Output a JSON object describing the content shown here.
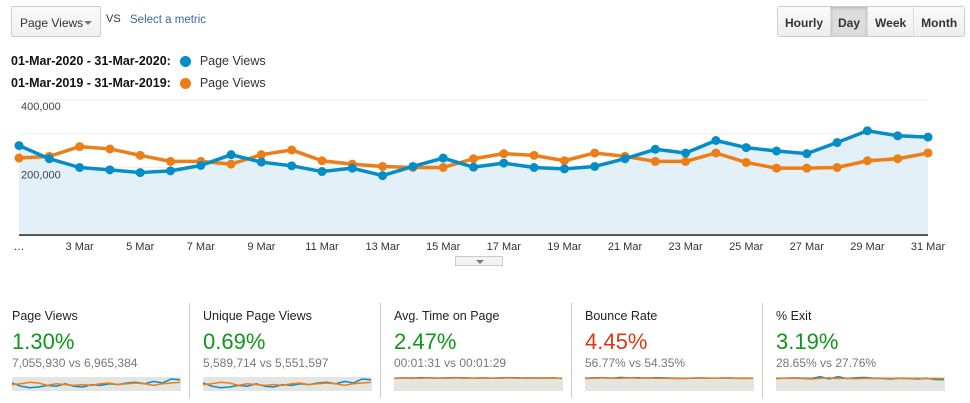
{
  "toolbar": {
    "metric": "Page Views",
    "vs": "VS",
    "select_metric": "Select a metric",
    "periods": [
      "Hourly",
      "Day",
      "Week",
      "Month"
    ],
    "active_period": "Day"
  },
  "legend": [
    {
      "range": "01-Mar-2020 - 31-Mar-2020:",
      "label": "Page Views",
      "color": "#058dc7"
    },
    {
      "range": "01-Mar-2019 - 31-Mar-2019:",
      "label": "Page Views",
      "color": "#ed7e17"
    }
  ],
  "chart_data": {
    "type": "line",
    "x": [
      "…",
      "2 Mar",
      "3 Mar",
      "4 Mar",
      "5 Mar",
      "6 Mar",
      "7 Mar",
      "8 Mar",
      "9 Mar",
      "10 Mar",
      "11 Mar",
      "12 Mar",
      "13 Mar",
      "14 Mar",
      "15 Mar",
      "16 Mar",
      "17 Mar",
      "18 Mar",
      "19 Mar",
      "20 Mar",
      "21 Mar",
      "22 Mar",
      "23 Mar",
      "24 Mar",
      "25 Mar",
      "26 Mar",
      "27 Mar",
      "28 Mar",
      "29 Mar",
      "30 Mar",
      "31 Mar"
    ],
    "tick_labels": [
      "…",
      "3 Mar",
      "5 Mar",
      "7 Mar",
      "9 Mar",
      "11 Mar",
      "13 Mar",
      "15 Mar",
      "17 Mar",
      "19 Mar",
      "21 Mar",
      "23 Mar",
      "25 Mar",
      "27 Mar",
      "29 Mar",
      "31 Mar"
    ],
    "y_ticks": [
      "400,000",
      "200,000"
    ],
    "ylim": [
      0,
      400000
    ],
    "series": [
      {
        "name": "Page Views (01-Mar-2020 - 31-Mar-2020)",
        "color": "#058dc7",
        "values": [
          265000,
          226000,
          200000,
          193000,
          185000,
          190000,
          206000,
          238000,
          216000,
          205000,
          188000,
          198000,
          176000,
          203000,
          228000,
          201000,
          213000,
          200000,
          196000,
          203000,
          226000,
          254000,
          243000,
          280000,
          259000,
          249000,
          241000,
          274000,
          309000,
          294000,
          290000
        ]
      },
      {
        "name": "Page Views (01-Mar-2019 - 31-Mar-2019)",
        "color": "#ed7e17",
        "values": [
          228000,
          233000,
          262000,
          255000,
          236000,
          218000,
          218000,
          210000,
          238000,
          252000,
          220000,
          210000,
          203000,
          200000,
          200000,
          226000,
          241000,
          236000,
          220000,
          243000,
          233000,
          218000,
          218000,
          243000,
          215000,
          198000,
          198000,
          200000,
          220000,
          226000,
          243000
        ]
      }
    ]
  },
  "scorecards": [
    {
      "title": "Page Views",
      "change": "1.30%",
      "color": "#109618",
      "compare": "7,055,930 vs 6,965,384",
      "spark": [
        [
          0.5,
          0.3,
          0.2,
          0.25,
          0.35,
          0.3,
          0.45,
          0.3,
          0.25,
          0.4,
          0.35,
          0.45,
          0.4,
          0.5,
          0.55,
          0.45,
          0.6,
          0.5,
          0.75,
          0.7
        ],
        [
          0.4,
          0.45,
          0.55,
          0.5,
          0.35,
          0.45,
          0.4,
          0.35,
          0.4,
          0.35,
          0.45,
          0.5,
          0.4,
          0.45,
          0.5,
          0.45,
          0.35,
          0.45,
          0.5,
          0.55
        ]
      ]
    },
    {
      "title": "Unique Page Views",
      "change": "0.69%",
      "color": "#109618",
      "compare": "5,589,714 vs 5,551,597",
      "spark": [
        [
          0.5,
          0.3,
          0.2,
          0.25,
          0.35,
          0.3,
          0.45,
          0.3,
          0.25,
          0.4,
          0.35,
          0.45,
          0.4,
          0.5,
          0.55,
          0.45,
          0.6,
          0.5,
          0.75,
          0.7
        ],
        [
          0.4,
          0.45,
          0.55,
          0.5,
          0.35,
          0.45,
          0.4,
          0.35,
          0.4,
          0.35,
          0.45,
          0.5,
          0.4,
          0.45,
          0.5,
          0.45,
          0.35,
          0.45,
          0.5,
          0.55
        ]
      ]
    },
    {
      "title": "Avg. Time on Page",
      "change": "2.47%",
      "color": "#109618",
      "compare": "00:01:31 vs 00:01:29",
      "spark": [
        [
          0.8,
          0.82,
          0.8,
          0.84,
          0.82,
          0.8,
          0.82,
          0.84,
          0.82,
          0.8,
          0.82,
          0.8,
          0.82,
          0.84,
          0.82,
          0.8,
          0.82,
          0.8,
          0.82,
          0.78
        ],
        [
          0.8,
          0.8,
          0.82,
          0.8,
          0.82,
          0.8,
          0.8,
          0.82,
          0.8,
          0.8,
          0.82,
          0.8,
          0.8,
          0.82,
          0.8,
          0.82,
          0.8,
          0.82,
          0.8,
          0.8
        ]
      ]
    },
    {
      "title": "Bounce Rate",
      "change": "4.45%",
      "color": "#dc3912",
      "compare": "56.77% vs 54.35%",
      "spark": [
        [
          0.8,
          0.82,
          0.84,
          0.8,
          0.85,
          0.82,
          0.84,
          0.8,
          0.84,
          0.82,
          0.8,
          0.78,
          0.8,
          0.82,
          0.8,
          0.8,
          0.82,
          0.8,
          0.8,
          0.8
        ],
        [
          0.78,
          0.8,
          0.82,
          0.8,
          0.8,
          0.82,
          0.8,
          0.82,
          0.8,
          0.8,
          0.78,
          0.8,
          0.8,
          0.82,
          0.8,
          0.8,
          0.82,
          0.8,
          0.78,
          0.8
        ]
      ]
    },
    {
      "title": "% Exit",
      "change": "3.19%",
      "color": "#109618",
      "compare": "28.65% vs 27.76%",
      "spark": [
        [
          0.8,
          0.8,
          0.82,
          0.8,
          0.78,
          0.9,
          0.75,
          0.9,
          0.78,
          0.82,
          0.85,
          0.8,
          0.78,
          0.75,
          0.8,
          0.78,
          0.75,
          0.8,
          0.72,
          0.7
        ],
        [
          0.78,
          0.8,
          0.8,
          0.78,
          0.75,
          0.8,
          0.82,
          0.78,
          0.8,
          0.76,
          0.8,
          0.78,
          0.8,
          0.78,
          0.8,
          0.78,
          0.8,
          0.76,
          0.78,
          0.76
        ]
      ]
    }
  ]
}
